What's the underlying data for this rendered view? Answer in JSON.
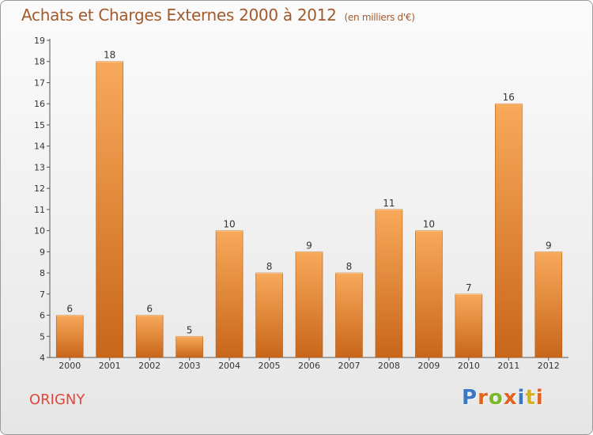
{
  "title": {
    "main": "Achats et Charges Externes 2000 à 2012",
    "unit": "(en milliers d'€)"
  },
  "location": "ORIGNY",
  "brand": {
    "text": "Proxiti",
    "letter_colors": [
      "#3b78c4",
      "#e2631f",
      "#7ab828",
      "#e2631f",
      "#3b78c4",
      "#d3b21b",
      "#e2631f"
    ]
  },
  "colors": {
    "bar_light": "#f8a95a",
    "bar_dark": "#c8661a",
    "title": "#a05a2c",
    "location": "#e0473d",
    "label": "#333333"
  },
  "chart_data": {
    "type": "bar",
    "title": "Achats et Charges Externes 2000 à 2012",
    "subtitle": "(en milliers d'€)",
    "xlabel": "",
    "ylabel": "",
    "categories": [
      "2000",
      "2001",
      "2002",
      "2003",
      "2004",
      "2005",
      "2006",
      "2007",
      "2008",
      "2009",
      "2010",
      "2011",
      "2012"
    ],
    "values": [
      6,
      18,
      6,
      5,
      10,
      8,
      9,
      8,
      11,
      10,
      7,
      16,
      9
    ],
    "ylim": [
      4,
      19
    ],
    "yticks": [
      4,
      5,
      6,
      7,
      8,
      9,
      10,
      11,
      12,
      13,
      14,
      15,
      16,
      17,
      18,
      19
    ],
    "grid": false,
    "legend": "none",
    "data_labels": true
  }
}
